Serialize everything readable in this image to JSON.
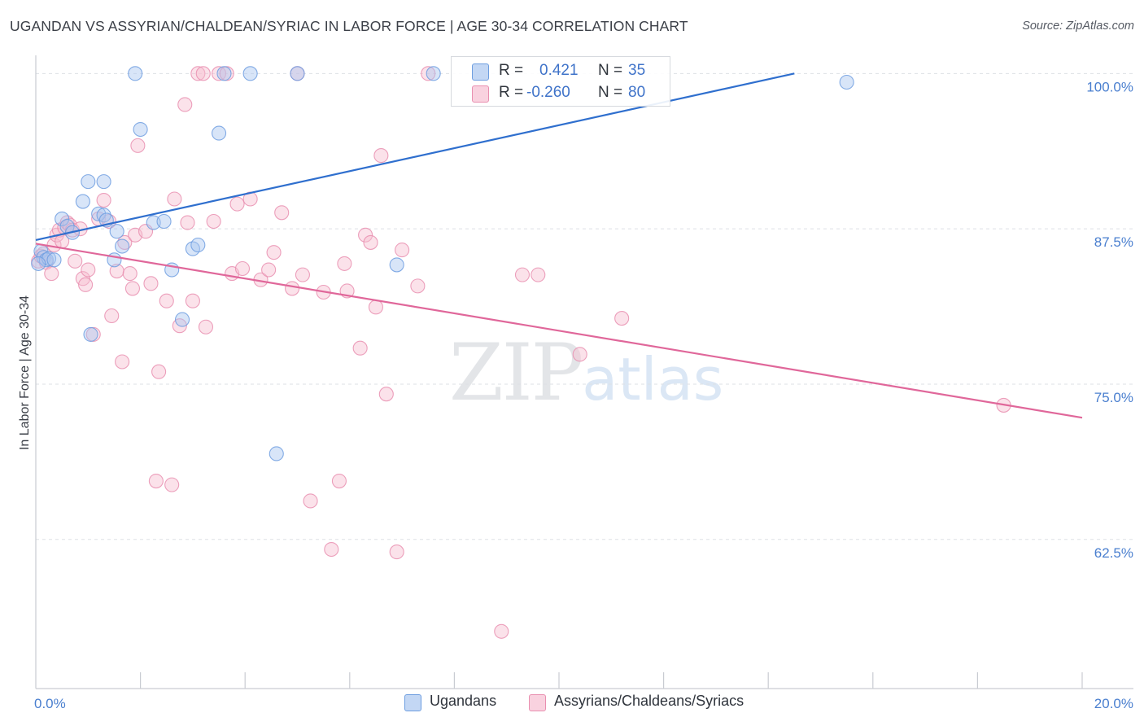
{
  "header": {
    "title": "UGANDAN VS ASSYRIAN/CHALDEAN/SYRIAC IN LABOR FORCE | AGE 30-34 CORRELATION CHART",
    "source": "Source: ZipAtlas.com"
  },
  "watermark": {
    "zip": "ZIP",
    "atlas": "atlas"
  },
  "legend": {
    "rows": [
      {
        "r_label": "R =",
        "r_value": "0.421",
        "n_label": "N =",
        "n_value": "35"
      },
      {
        "r_label": "R =",
        "r_value": "-0.260",
        "n_label": "N =",
        "n_value": "80"
      }
    ]
  },
  "bottom_legend": {
    "items": [
      {
        "label": "Ugandans"
      },
      {
        "label": "Assyrians/Chaldeans/Syriacs"
      }
    ]
  },
  "colors": {
    "blue_fill": "#a9c6f0",
    "blue_stroke": "#6e9ee0",
    "blue_line": "#2f6fce",
    "pink_fill": "#f6bfd1",
    "pink_stroke": "#e98fb0",
    "pink_line": "#e0679a",
    "tick_text": "#4a7fcf",
    "grid": "#dde0e5"
  },
  "chart_data": {
    "type": "scatter",
    "title": "UGANDAN VS ASSYRIAN/CHALDEAN/SYRIAC IN LABOR FORCE | AGE 30-34 CORRELATION CHART",
    "xlabel": "",
    "ylabel": "In Labor Force | Age 30-34",
    "xlim": [
      0,
      20
    ],
    "ylim": [
      50.5,
      101.2
    ],
    "x_tick_labels": [
      {
        "value": 0,
        "label": "0.0%"
      },
      {
        "value": 20,
        "label": "20.0%"
      }
    ],
    "y_tick_labels": [
      {
        "value": 100,
        "label": "100.0%"
      },
      {
        "value": 87.5,
        "label": "87.5%"
      },
      {
        "value": 75,
        "label": "75.0%"
      },
      {
        "value": 62.5,
        "label": "62.5%"
      }
    ],
    "x_minor_ticks": [
      2,
      4,
      6,
      8,
      10,
      12,
      14,
      16,
      18,
      20
    ],
    "grid_y": [
      100,
      87.5,
      75,
      62.5
    ],
    "series": [
      {
        "name": "Ugandans",
        "color": "blue",
        "R": 0.421,
        "N": 35,
        "trend": {
          "x": [
            0,
            14.5
          ],
          "y": [
            86.6,
            100.0
          ]
        },
        "points": [
          [
            0.1,
            85.7
          ],
          [
            0.15,
            85.2
          ],
          [
            0.2,
            85.0
          ],
          [
            0.25,
            85.1
          ],
          [
            0.35,
            85.0
          ],
          [
            0.5,
            88.3
          ],
          [
            0.6,
            87.7
          ],
          [
            0.7,
            87.2
          ],
          [
            0.9,
            89.7
          ],
          [
            1.0,
            91.3
          ],
          [
            1.05,
            79.0
          ],
          [
            1.2,
            88.7
          ],
          [
            1.3,
            88.6
          ],
          [
            1.35,
            88.2
          ],
          [
            1.3,
            91.3
          ],
          [
            1.55,
            87.3
          ],
          [
            1.65,
            86.1
          ],
          [
            1.5,
            85.0
          ],
          [
            1.9,
            100.0
          ],
          [
            2.0,
            95.5
          ],
          [
            2.25,
            88.0
          ],
          [
            2.45,
            88.1
          ],
          [
            2.6,
            84.2
          ],
          [
            2.8,
            80.2
          ],
          [
            3.0,
            85.9
          ],
          [
            3.1,
            86.2
          ],
          [
            3.5,
            95.2
          ],
          [
            3.6,
            100.0
          ],
          [
            4.1,
            100.0
          ],
          [
            4.6,
            69.4
          ],
          [
            5.0,
            100.0
          ],
          [
            6.9,
            84.6
          ],
          [
            7.6,
            100.0
          ],
          [
            15.5,
            99.3
          ],
          [
            0.05,
            84.7
          ]
        ]
      },
      {
        "name": "Assyrians/Chaldeans/Syriacs",
        "color": "pink",
        "R": -0.26,
        "N": 80,
        "trend": {
          "x": [
            0,
            20
          ],
          "y": [
            86.3,
            72.3
          ]
        },
        "points": [
          [
            0.05,
            84.9
          ],
          [
            0.1,
            85.3
          ],
          [
            0.15,
            85.5
          ],
          [
            0.2,
            84.8
          ],
          [
            0.3,
            83.9
          ],
          [
            0.35,
            86.2
          ],
          [
            0.4,
            87.0
          ],
          [
            0.45,
            87.4
          ],
          [
            0.5,
            86.5
          ],
          [
            0.55,
            87.6
          ],
          [
            0.6,
            88.0
          ],
          [
            0.65,
            87.8
          ],
          [
            0.7,
            87.4
          ],
          [
            0.75,
            84.9
          ],
          [
            0.85,
            87.5
          ],
          [
            0.9,
            83.5
          ],
          [
            0.95,
            83.0
          ],
          [
            1.0,
            84.2
          ],
          [
            1.1,
            79.0
          ],
          [
            1.2,
            88.3
          ],
          [
            1.3,
            89.8
          ],
          [
            1.4,
            88.1
          ],
          [
            1.45,
            80.5
          ],
          [
            1.55,
            84.1
          ],
          [
            1.65,
            76.8
          ],
          [
            1.7,
            86.4
          ],
          [
            1.8,
            83.9
          ],
          [
            1.85,
            82.7
          ],
          [
            1.9,
            87.0
          ],
          [
            1.95,
            94.2
          ],
          [
            2.1,
            87.3
          ],
          [
            2.2,
            83.1
          ],
          [
            2.3,
            67.2
          ],
          [
            2.35,
            76.0
          ],
          [
            2.5,
            81.7
          ],
          [
            2.6,
            66.9
          ],
          [
            2.65,
            89.9
          ],
          [
            2.75,
            79.7
          ],
          [
            2.85,
            97.5
          ],
          [
            2.9,
            88.0
          ],
          [
            3.0,
            81.7
          ],
          [
            3.1,
            100.0
          ],
          [
            3.2,
            100.0
          ],
          [
            3.25,
            79.6
          ],
          [
            3.4,
            88.1
          ],
          [
            3.5,
            100.0
          ],
          [
            3.65,
            100.0
          ],
          [
            3.75,
            83.9
          ],
          [
            3.85,
            89.5
          ],
          [
            3.95,
            84.3
          ],
          [
            4.1,
            89.9
          ],
          [
            4.3,
            83.4
          ],
          [
            4.45,
            84.2
          ],
          [
            4.55,
            85.6
          ],
          [
            4.7,
            88.8
          ],
          [
            4.9,
            82.7
          ],
          [
            5.0,
            100.0
          ],
          [
            5.1,
            83.8
          ],
          [
            5.25,
            65.6
          ],
          [
            5.5,
            82.4
          ],
          [
            5.65,
            61.7
          ],
          [
            5.8,
            67.2
          ],
          [
            5.9,
            84.7
          ],
          [
            5.95,
            82.5
          ],
          [
            6.2,
            77.9
          ],
          [
            6.3,
            87.0
          ],
          [
            6.4,
            86.4
          ],
          [
            6.5,
            81.2
          ],
          [
            6.6,
            93.4
          ],
          [
            6.7,
            74.2
          ],
          [
            6.9,
            61.5
          ],
          [
            7.0,
            85.8
          ],
          [
            7.3,
            82.9
          ],
          [
            7.5,
            100.0
          ],
          [
            8.9,
            55.1
          ],
          [
            9.3,
            83.8
          ],
          [
            9.6,
            83.8
          ],
          [
            10.4,
            77.4
          ],
          [
            11.2,
            80.3
          ],
          [
            18.5,
            73.3
          ]
        ]
      }
    ]
  }
}
